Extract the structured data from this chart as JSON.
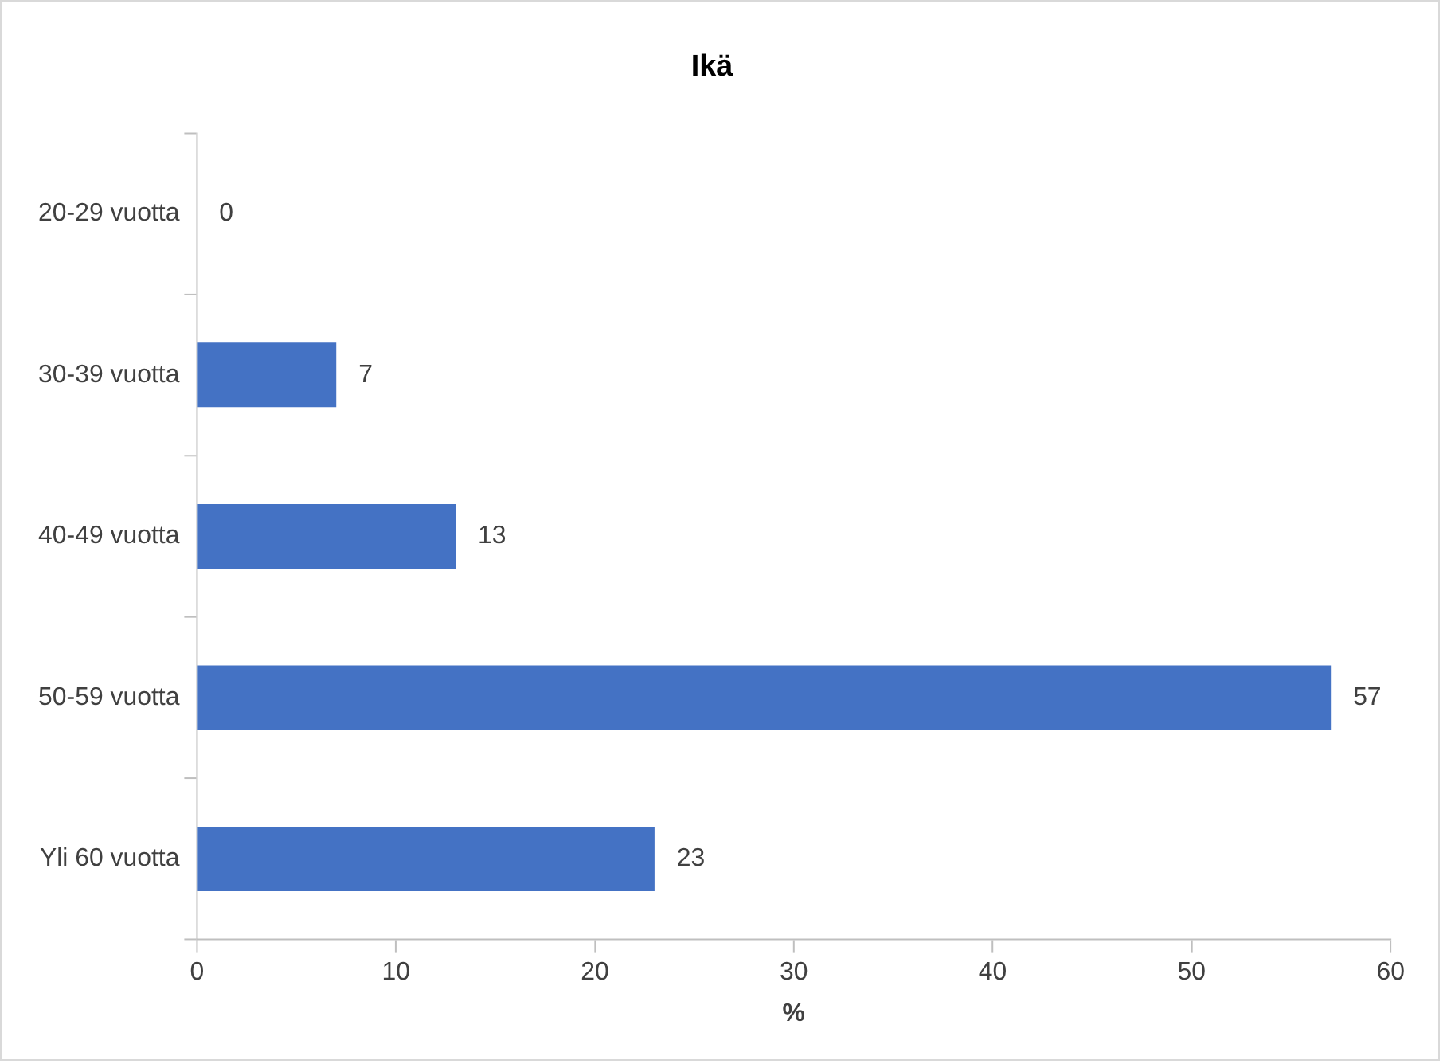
{
  "chart_data": {
    "type": "bar",
    "orientation": "horizontal",
    "title": "Ikä",
    "xlabel": "%",
    "categories": [
      "20-29 vuotta",
      "30-39 vuotta",
      "40-49 vuotta",
      "50-59 vuotta",
      "Yli 60 vuotta"
    ],
    "values": [
      0,
      7,
      13,
      57,
      23
    ],
    "color": "#4472c4",
    "xlim": [
      0,
      60
    ],
    "xticks": [
      0,
      10,
      20,
      30,
      40,
      50,
      60
    ],
    "grid": false,
    "legend": false,
    "data_labels": true
  }
}
